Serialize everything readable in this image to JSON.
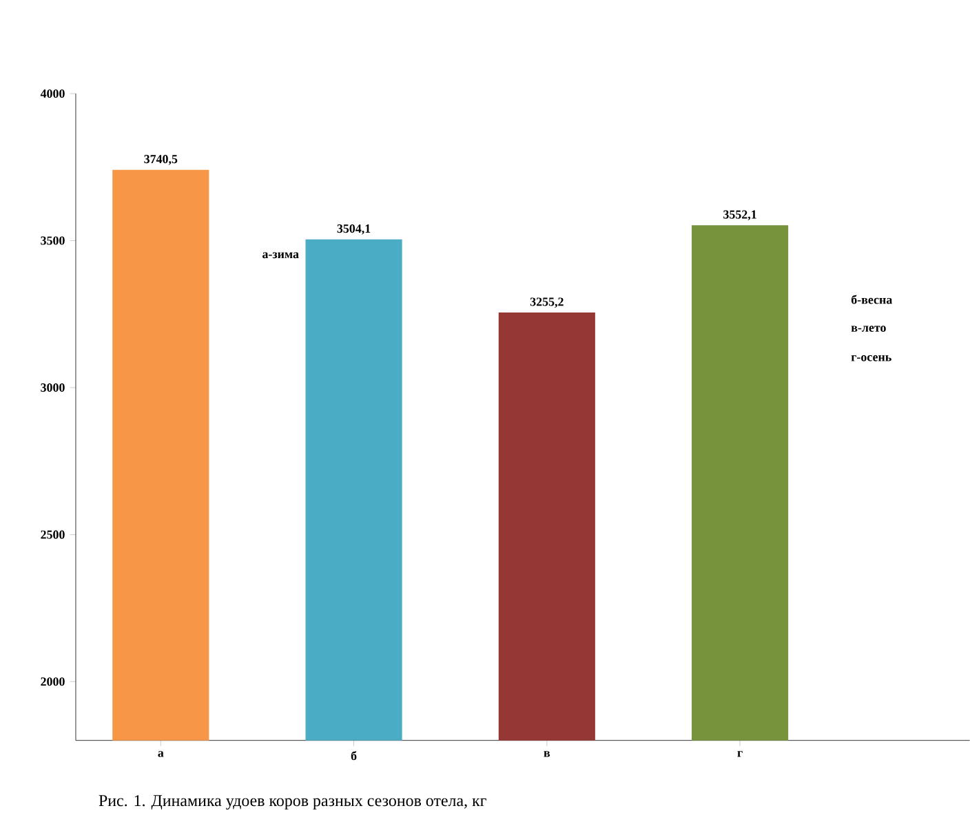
{
  "chart_data": {
    "type": "bar",
    "title": "Рис. 1. Динамика удоев коров разных сезонов отела, кг",
    "categories": [
      "а",
      "б",
      "в",
      "г"
    ],
    "values": [
      3740.5,
      3504.1,
      3255.2,
      3552.1
    ],
    "value_labels": [
      "3740,5",
      "3504,1",
      "3255,2",
      "3552,1"
    ],
    "colors": [
      "#f79646",
      "#4bacc6",
      "#953735",
      "#77933c"
    ],
    "ylim": [
      1800,
      4000
    ],
    "yticks": [
      2000,
      2500,
      3000,
      3500,
      4000
    ],
    "annotations": [
      "а-зима",
      "б-весна",
      "в-лето",
      "г-осень"
    ]
  }
}
